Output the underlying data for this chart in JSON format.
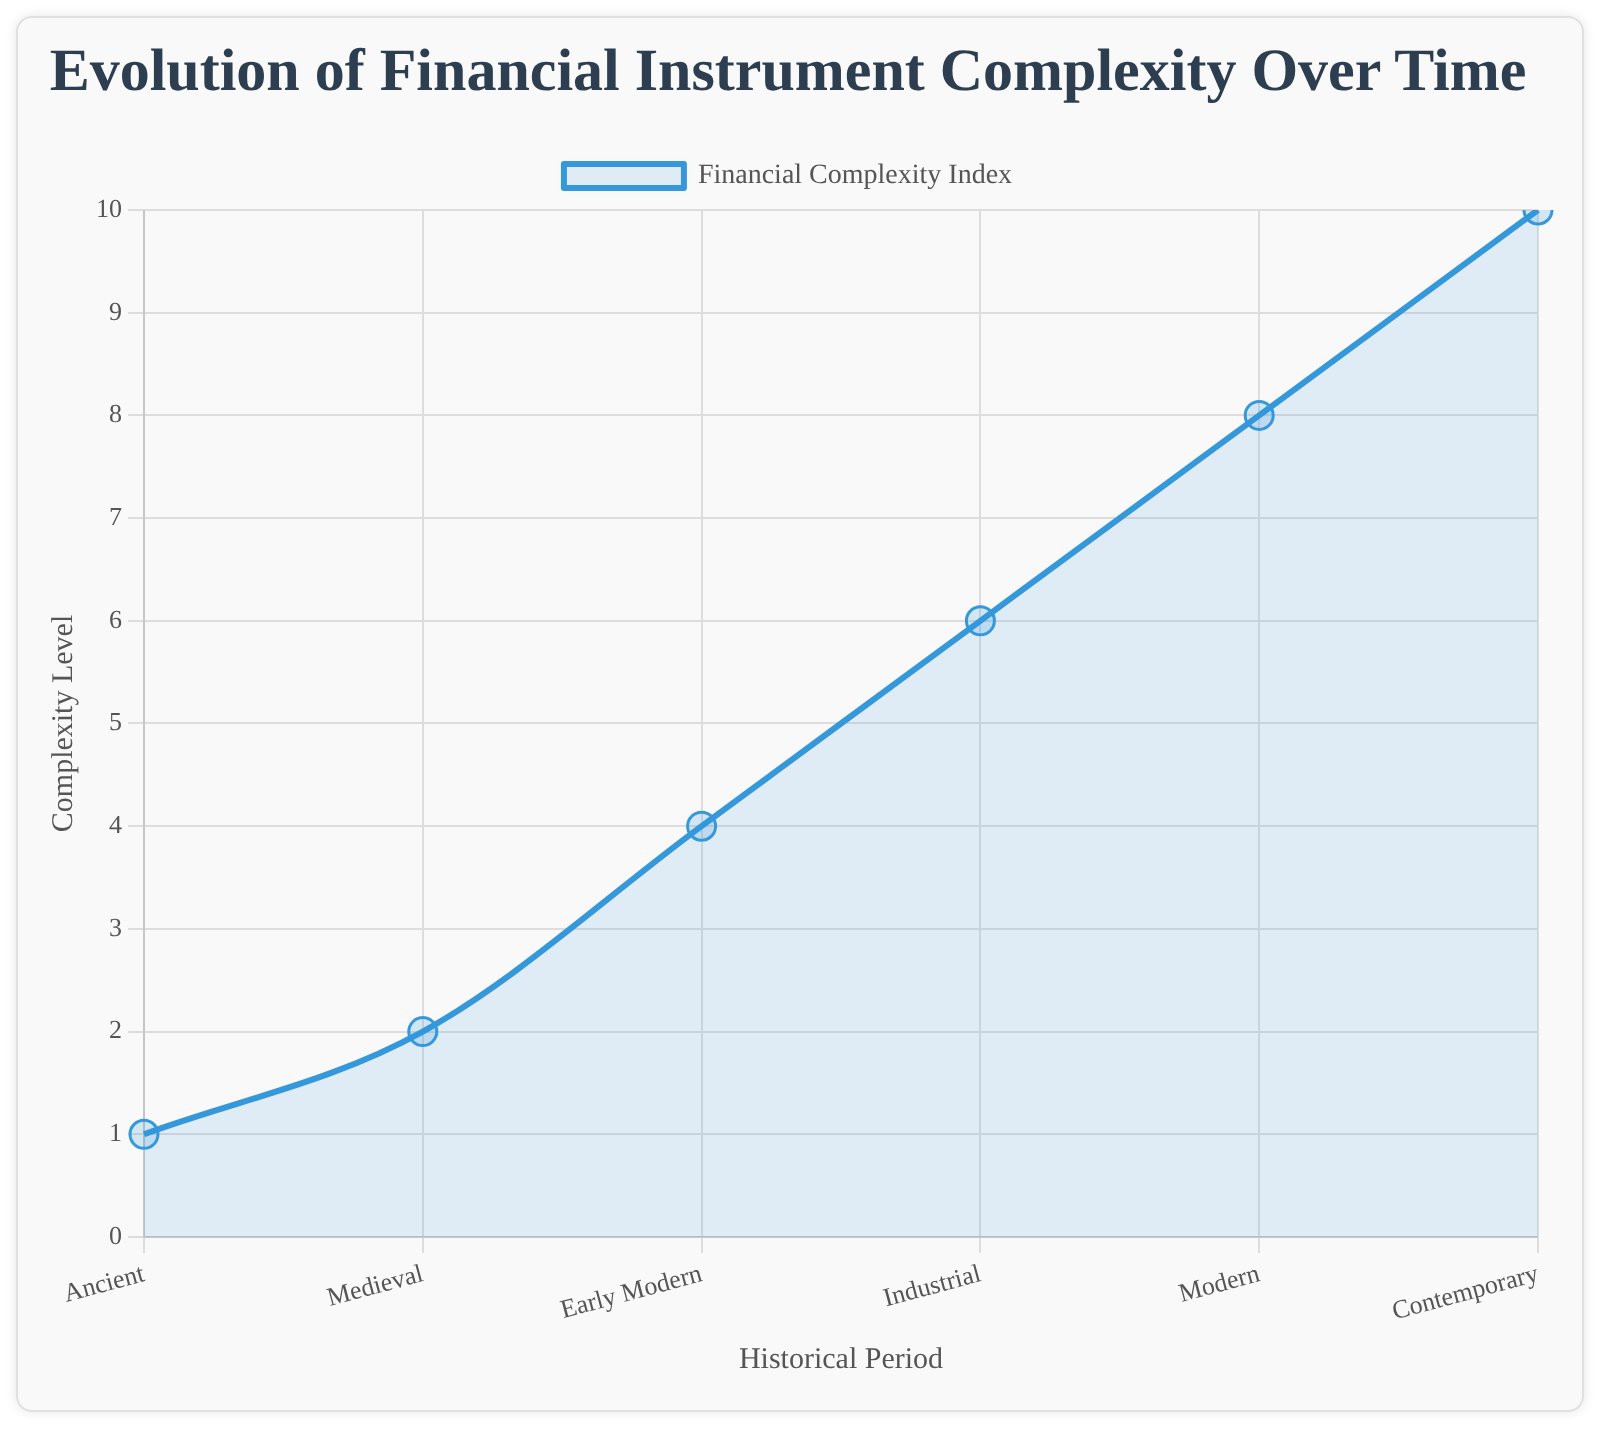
{
  "chart_data": {
    "type": "area",
    "title": "Evolution of Financial Instrument Complexity Over Time",
    "xlabel": "Historical Period",
    "ylabel": "Complexity Level",
    "categories": [
      "Ancient",
      "Medieval",
      "Early Modern",
      "Industrial",
      "Modern",
      "Contemporary"
    ],
    "series": [
      {
        "name": "Financial Complexity Index",
        "color": "#3498db",
        "values": [
          1,
          2,
          4,
          6,
          8,
          10
        ]
      }
    ],
    "ylim": [
      0,
      10
    ],
    "yticks": [
      0,
      1,
      2,
      3,
      4,
      5,
      6,
      7,
      8,
      9,
      10
    ],
    "grid": true,
    "legend": "top",
    "marker": "circle",
    "line_style": "solid"
  }
}
